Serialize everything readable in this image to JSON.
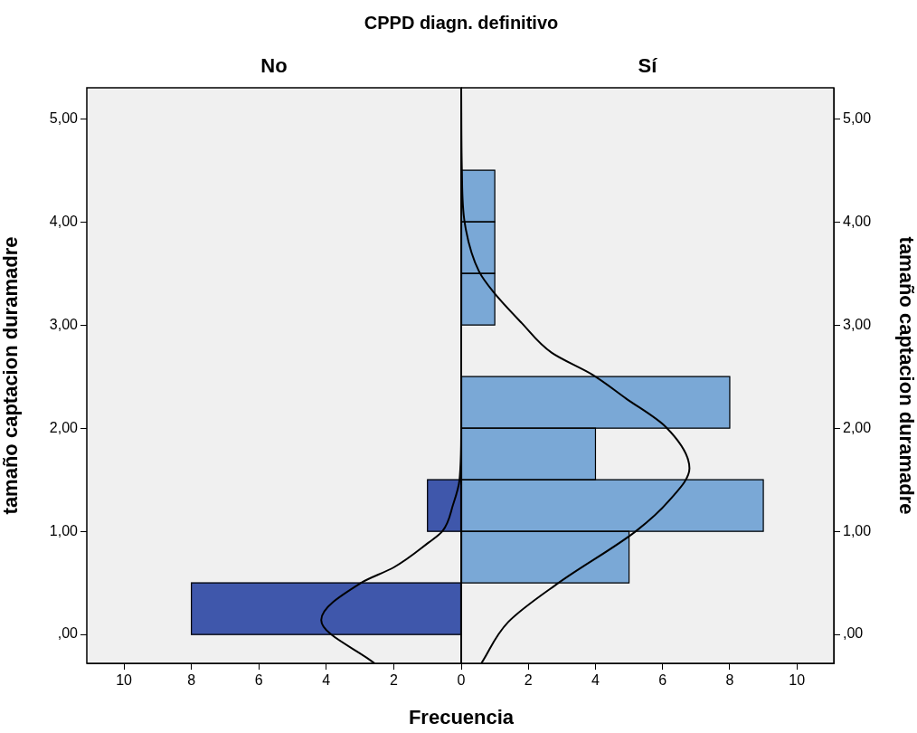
{
  "chart_data": [
    {
      "type": "histogram",
      "orientation": "horizontal",
      "title": "CPPD diagn. definitivo",
      "subtitle": "No",
      "xlabel": "Frecuencia",
      "ylabel": "tamaño captacion duramadre",
      "bins": [
        0,
        0.5,
        1,
        1.5,
        2,
        2.5,
        3,
        3.5,
        4,
        4.5
      ],
      "series": [
        {
          "color": "#3f57ab",
          "values": [
            8,
            0,
            1,
            0,
            0,
            0,
            0,
            0,
            0
          ]
        },
        {
          "type": "line",
          "color": "#000000",
          "x": [
            -0.28,
            0.14,
            0.5,
            0.65,
            0.89,
            1.0,
            1.26,
            1.5,
            2.0,
            5.3
          ],
          "values": [
            2.57,
            4.15,
            2.97,
            2.0,
            0.97,
            0.56,
            0.24,
            0.05,
            0,
            0
          ]
        }
      ],
      "xlim": [
        11.1,
        0
      ],
      "xticks": [
        10,
        8,
        6,
        4,
        2,
        0
      ],
      "ylim": [
        -0.28,
        5.3
      ],
      "yticks": [
        {
          "value": 0,
          "label": ",00"
        },
        {
          "value": 1,
          "label": "1,00"
        },
        {
          "value": 2,
          "label": "2,00"
        },
        {
          "value": 3,
          "label": "3,00"
        },
        {
          "value": 4,
          "label": "4,00"
        },
        {
          "value": 5,
          "label": "5,00"
        }
      ],
      "marker": "none"
    },
    {
      "type": "histogram",
      "orientation": "horizontal",
      "subtitle": "Sí",
      "ylabel": "tamaño captacion duramadre",
      "bins": [
        0,
        0.5,
        1,
        1.5,
        2,
        2.5,
        3,
        3.5,
        4,
        4.5
      ],
      "series": [
        {
          "color": "#7aa8d6",
          "values": [
            0,
            5,
            9,
            4,
            8,
            0,
            1,
            1,
            1
          ]
        },
        {
          "type": "line",
          "color": "#000000",
          "x": [
            -0.28,
            0.12,
            0.5,
            1.0,
            1.3,
            1.61,
            2.01,
            2.29,
            2.52,
            2.73,
            3.02,
            3.32,
            3.52,
            4.0,
            4.5,
            5.3
          ],
          "values": [
            0.6,
            1.4,
            2.9,
            5.2,
            6.2,
            6.8,
            6.1,
            4.9,
            3.9,
            2.7,
            1.8,
            0.96,
            0.53,
            0.1,
            0.02,
            0
          ]
        }
      ],
      "xlim": [
        0,
        11.1
      ],
      "xticks": [
        {
          "value": 0,
          "label": null
        },
        2,
        4,
        6,
        8,
        10
      ],
      "ylim": [
        -0.28,
        5.3
      ],
      "yticks": [
        {
          "value": 0,
          "label": ",00"
        },
        {
          "value": 1,
          "label": "1,00"
        },
        {
          "value": 2,
          "label": "2,00"
        },
        {
          "value": 3,
          "label": "3,00"
        },
        {
          "value": 4,
          "label": "4,00"
        },
        {
          "value": 5,
          "label": "5,00"
        }
      ],
      "marker": "none"
    }
  ]
}
